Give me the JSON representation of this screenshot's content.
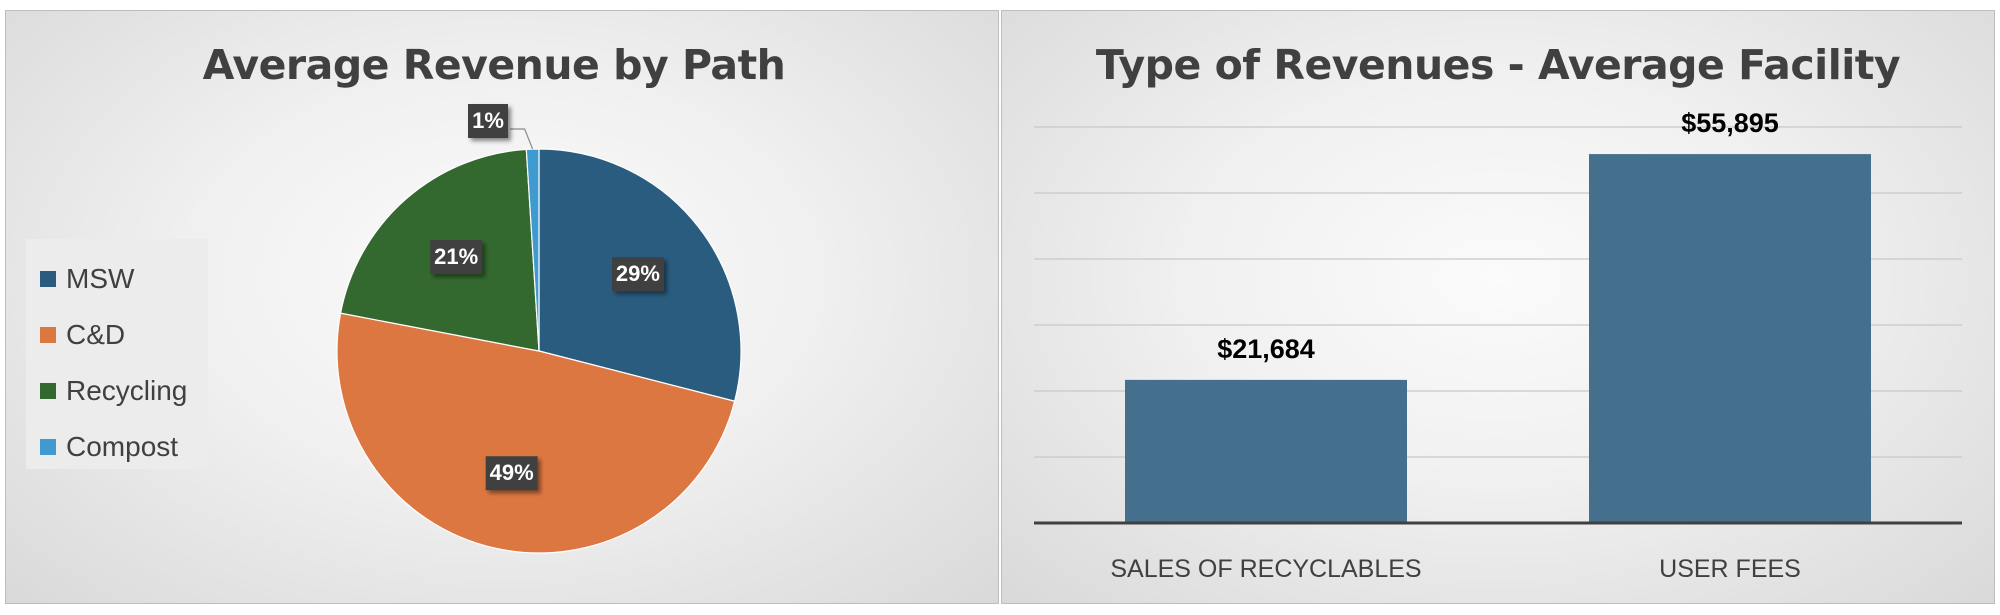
{
  "chart_data": [
    {
      "type": "pie",
      "title": "Average Revenue by Path",
      "legend_position": "left",
      "slices": [
        {
          "name": "MSW",
          "value": 29,
          "label": "29%",
          "color": "#2A5C80"
        },
        {
          "name": "C&D",
          "value": 49,
          "label": "49%",
          "color": "#DD7741"
        },
        {
          "name": "Recycling",
          "value": 21,
          "label": "21%",
          "color": "#33692F"
        },
        {
          "name": "Compost",
          "value": 1,
          "label": "1%",
          "color": "#3F9AD0"
        }
      ]
    },
    {
      "type": "bar",
      "title": "Type of Revenues - Average Facility",
      "categories": [
        "SALES OF RECYCLABLES",
        "USER FEES"
      ],
      "values": [
        21684,
        55895
      ],
      "data_labels": [
        "$21,684",
        "$55,895"
      ],
      "bar_color": "#44708D",
      "ylim": [
        0,
        60000
      ],
      "grid": true
    }
  ]
}
